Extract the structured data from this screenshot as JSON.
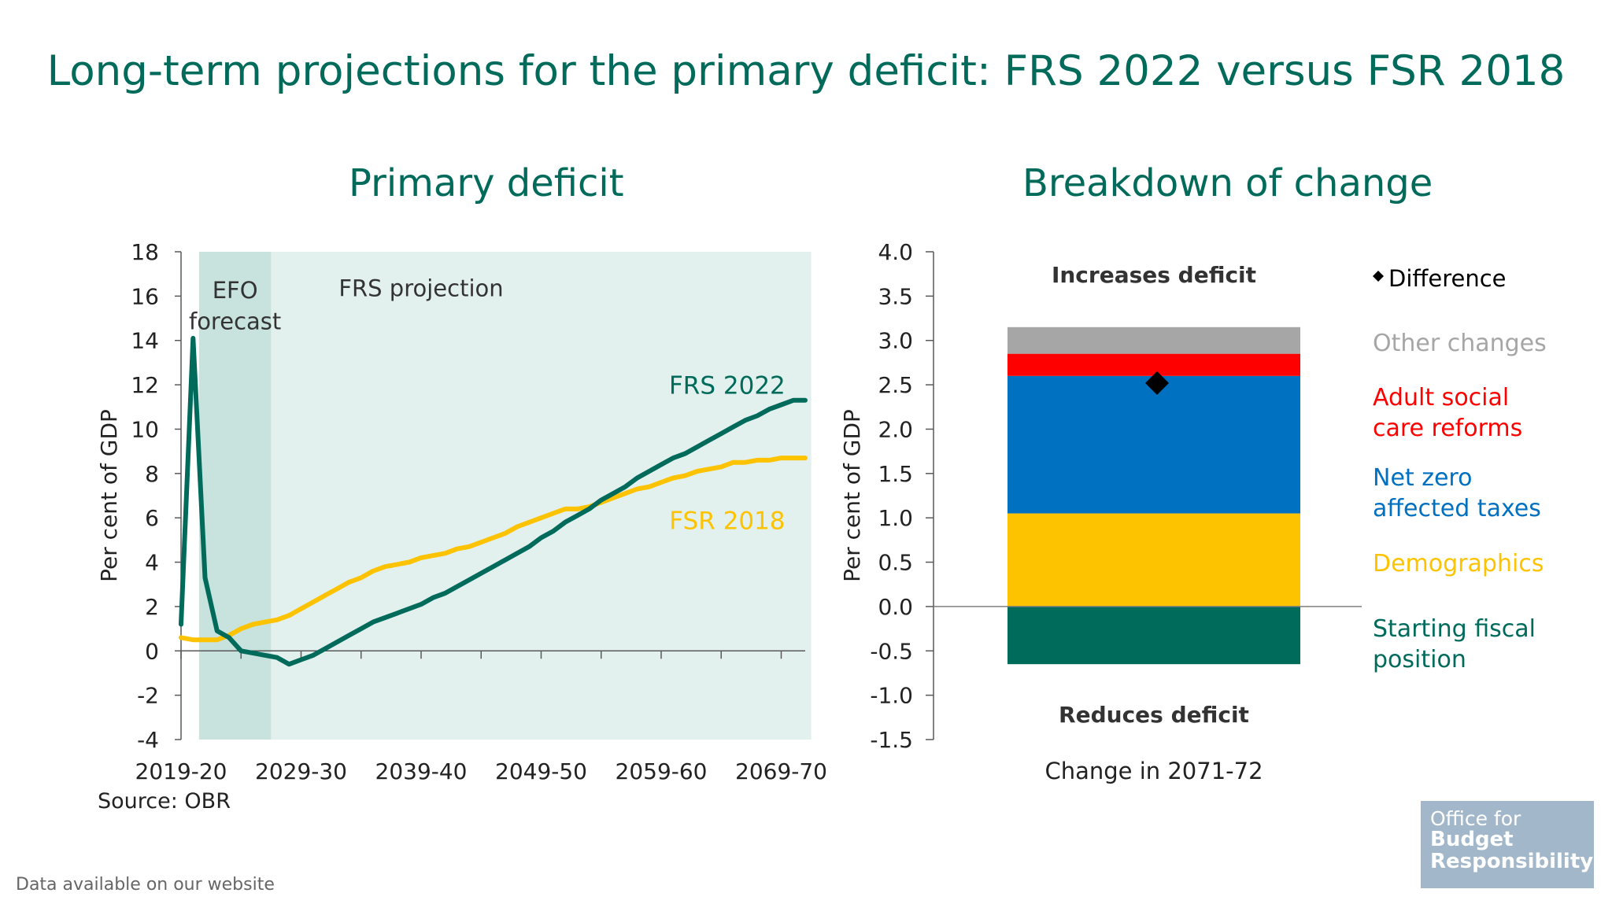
{
  "title": "Long-term projections for the primary deficit: FRS 2022 versus FSR 2018",
  "source": "Source: OBR",
  "footer_note": "Data available on our website",
  "logo": {
    "line1": "Office for",
    "line2": "Budget",
    "line3": "Responsibility"
  },
  "colors": {
    "brand": "#006a5b",
    "frs2022": "#006a5b",
    "fsr2018": "#fdc300",
    "efo_shade": "#c8e2dd",
    "frs_shade": "#e3f1ee",
    "other_changes": "#a6a6a6",
    "adult_social_care": "#ff0000",
    "net_zero": "#0070c0",
    "demographics": "#fdc300",
    "starting_fiscal": "#006a5b"
  },
  "chart_data": [
    {
      "type": "line",
      "title": "Primary deficit",
      "ylabel": "Per cent of GDP",
      "xlabel": "",
      "ylim": [
        -4,
        18
      ],
      "yticks": [
        "-4",
        "-2",
        "0",
        "2",
        "4",
        "6",
        "8",
        "10",
        "12",
        "14",
        "16",
        "18"
      ],
      "x_start_year": 2019,
      "x_end_year": 2071,
      "xtick_labels": [
        "2019-20",
        "2029-30",
        "2039-40",
        "2049-50",
        "2059-60",
        "2069-70"
      ],
      "shaded_regions": [
        {
          "label_line1": "EFO",
          "label_line2": "forecast",
          "from_year": 2020.5,
          "to_year": 2026.5
        },
        {
          "label": "FRS projection",
          "from_year": 2026.5,
          "to_year": 2071.5
        }
      ],
      "series": [
        {
          "name": "FRS 2022",
          "label": "FRS 2022",
          "x": [
            2019,
            2020,
            2021,
            2022,
            2023,
            2024,
            2025,
            2026,
            2027,
            2028,
            2029,
            2030,
            2031,
            2032,
            2033,
            2034,
            2035,
            2036,
            2037,
            2038,
            2039,
            2040,
            2041,
            2042,
            2043,
            2044,
            2045,
            2046,
            2047,
            2048,
            2049,
            2050,
            2051,
            2052,
            2053,
            2054,
            2055,
            2056,
            2057,
            2058,
            2059,
            2060,
            2061,
            2062,
            2063,
            2064,
            2065,
            2066,
            2067,
            2068,
            2069,
            2070,
            2071
          ],
          "values": [
            1.2,
            14.1,
            3.3,
            0.9,
            0.6,
            0.0,
            -0.1,
            -0.2,
            -0.3,
            -0.6,
            -0.4,
            -0.2,
            0.1,
            0.4,
            0.7,
            1.0,
            1.3,
            1.5,
            1.7,
            1.9,
            2.1,
            2.4,
            2.6,
            2.9,
            3.2,
            3.5,
            3.8,
            4.1,
            4.4,
            4.7,
            5.1,
            5.4,
            5.8,
            6.1,
            6.4,
            6.8,
            7.1,
            7.4,
            7.8,
            8.1,
            8.4,
            8.7,
            8.9,
            9.2,
            9.5,
            9.8,
            10.1,
            10.4,
            10.6,
            10.9,
            11.1,
            11.3,
            11.3
          ]
        },
        {
          "name": "FSR 2018",
          "label": "FSR 2018",
          "x": [
            2019,
            2020,
            2021,
            2022,
            2023,
            2024,
            2025,
            2026,
            2027,
            2028,
            2029,
            2030,
            2031,
            2032,
            2033,
            2034,
            2035,
            2036,
            2037,
            2038,
            2039,
            2040,
            2041,
            2042,
            2043,
            2044,
            2045,
            2046,
            2047,
            2048,
            2049,
            2050,
            2051,
            2052,
            2053,
            2054,
            2055,
            2056,
            2057,
            2058,
            2059,
            2060,
            2061,
            2062,
            2063,
            2064,
            2065,
            2066,
            2067,
            2068,
            2069,
            2070,
            2071
          ],
          "values": [
            0.6,
            0.5,
            0.5,
            0.5,
            0.7,
            1.0,
            1.2,
            1.3,
            1.4,
            1.6,
            1.9,
            2.2,
            2.5,
            2.8,
            3.1,
            3.3,
            3.6,
            3.8,
            3.9,
            4.0,
            4.2,
            4.3,
            4.4,
            4.6,
            4.7,
            4.9,
            5.1,
            5.3,
            5.6,
            5.8,
            6.0,
            6.2,
            6.4,
            6.4,
            6.5,
            6.7,
            6.9,
            7.1,
            7.3,
            7.4,
            7.6,
            7.8,
            7.9,
            8.1,
            8.2,
            8.3,
            8.5,
            8.5,
            8.6,
            8.6,
            8.7,
            8.7,
            8.7
          ]
        }
      ]
    },
    {
      "type": "bar",
      "title": "Breakdown of change",
      "ylabel": "Per cent of GDP",
      "xlabel": "Change in 2071-72",
      "ylim": [
        -1.5,
        4.0
      ],
      "yticks": [
        "4.0",
        "3.5",
        "3.0",
        "2.5",
        "2.0",
        "1.5",
        "1.0",
        "0.5",
        "0.0",
        "-0.5",
        "-1.0",
        "-1.5"
      ],
      "top_annotation": "Increases deficit",
      "bottom_annotation": "Reduces deficit",
      "difference": {
        "label": "Difference",
        "value": 2.52
      },
      "series": [
        {
          "name": "Other changes",
          "value": 0.3,
          "legend_line1": "Other changes",
          "legend_line2": ""
        },
        {
          "name": "Adult social care reforms",
          "value": 0.25,
          "legend_line1": "Adult social",
          "legend_line2": "care reforms"
        },
        {
          "name": "Net zero affected taxes",
          "value": 1.55,
          "legend_line1": "Net zero",
          "legend_line2": "affected taxes"
        },
        {
          "name": "Demographics",
          "value": 1.05,
          "legend_line1": "Demographics",
          "legend_line2": ""
        },
        {
          "name": "Starting fiscal position",
          "value": -0.65,
          "legend_line1": "Starting fiscal",
          "legend_line2": "position"
        }
      ]
    }
  ]
}
